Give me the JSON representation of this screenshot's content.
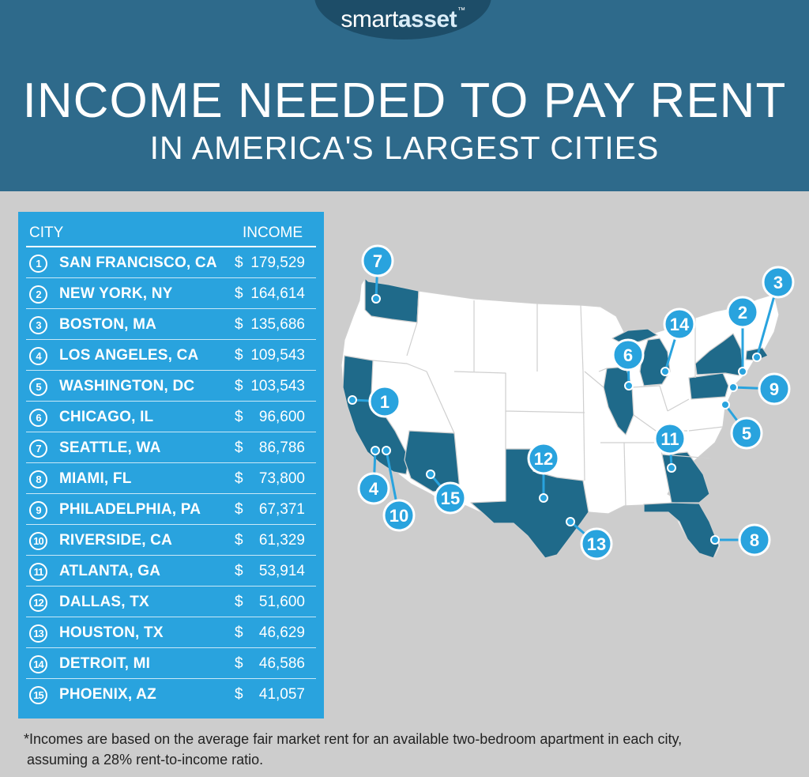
{
  "brand": {
    "name_part1": "smart",
    "name_part2": "asset",
    "trademark": "™",
    "color": "#2e6a8b"
  },
  "title": "INCOME NEEDED TO PAY RENT",
  "subtitle": "IN AMERICA'S LARGEST CITIES",
  "table": {
    "col_city": "CITY",
    "col_income": "INCOME",
    "rows": [
      {
        "rank": "1",
        "city": "SAN FRANCISCO, CA",
        "currency": "$",
        "income": "179,529"
      },
      {
        "rank": "2",
        "city": "NEW YORK, NY",
        "currency": "$",
        "income": "164,614"
      },
      {
        "rank": "3",
        "city": "BOSTON, MA",
        "currency": "$",
        "income": "135,686"
      },
      {
        "rank": "4",
        "city": "LOS ANGELES, CA",
        "currency": "$",
        "income": "109,543"
      },
      {
        "rank": "5",
        "city": "WASHINGTON, DC",
        "currency": "$",
        "income": "103,543"
      },
      {
        "rank": "6",
        "city": "CHICAGO, IL",
        "currency": "$",
        "income": "96,600"
      },
      {
        "rank": "7",
        "city": "SEATTLE, WA",
        "currency": "$",
        "income": "86,786"
      },
      {
        "rank": "8",
        "city": "MIAMI, FL",
        "currency": "$",
        "income": "73,800"
      },
      {
        "rank": "9",
        "city": "PHILADELPHIA, PA",
        "currency": "$",
        "income": "67,371"
      },
      {
        "rank": "10",
        "city": "RIVERSIDE, CA",
        "currency": "$",
        "income": "61,329"
      },
      {
        "rank": "11",
        "city": "ATLANTA, GA",
        "currency": "$",
        "income": "53,914"
      },
      {
        "rank": "12",
        "city": "DALLAS, TX",
        "currency": "$",
        "income": "51,600"
      },
      {
        "rank": "13",
        "city": "HOUSTON, TX",
        "currency": "$",
        "income": "46,629"
      },
      {
        "rank": "14",
        "city": "DETROIT, MI",
        "currency": "$",
        "income": "46,586"
      },
      {
        "rank": "15",
        "city": "PHOENIX, AZ",
        "currency": "$",
        "income": "41,057"
      }
    ]
  },
  "map": {
    "highlight_color": "#1f6a8a",
    "marker_color": "#29a3de",
    "markers": [
      "7",
      "3",
      "2",
      "14",
      "6",
      "9",
      "1",
      "5",
      "11",
      "12",
      "4",
      "10",
      "15",
      "13",
      "8"
    ]
  },
  "footnote": {
    "line1": "*Incomes are based on the average fair market rent for an available two-bedroom apartment in each city,",
    "line2": "assuming a 28% rent-to-income ratio."
  }
}
